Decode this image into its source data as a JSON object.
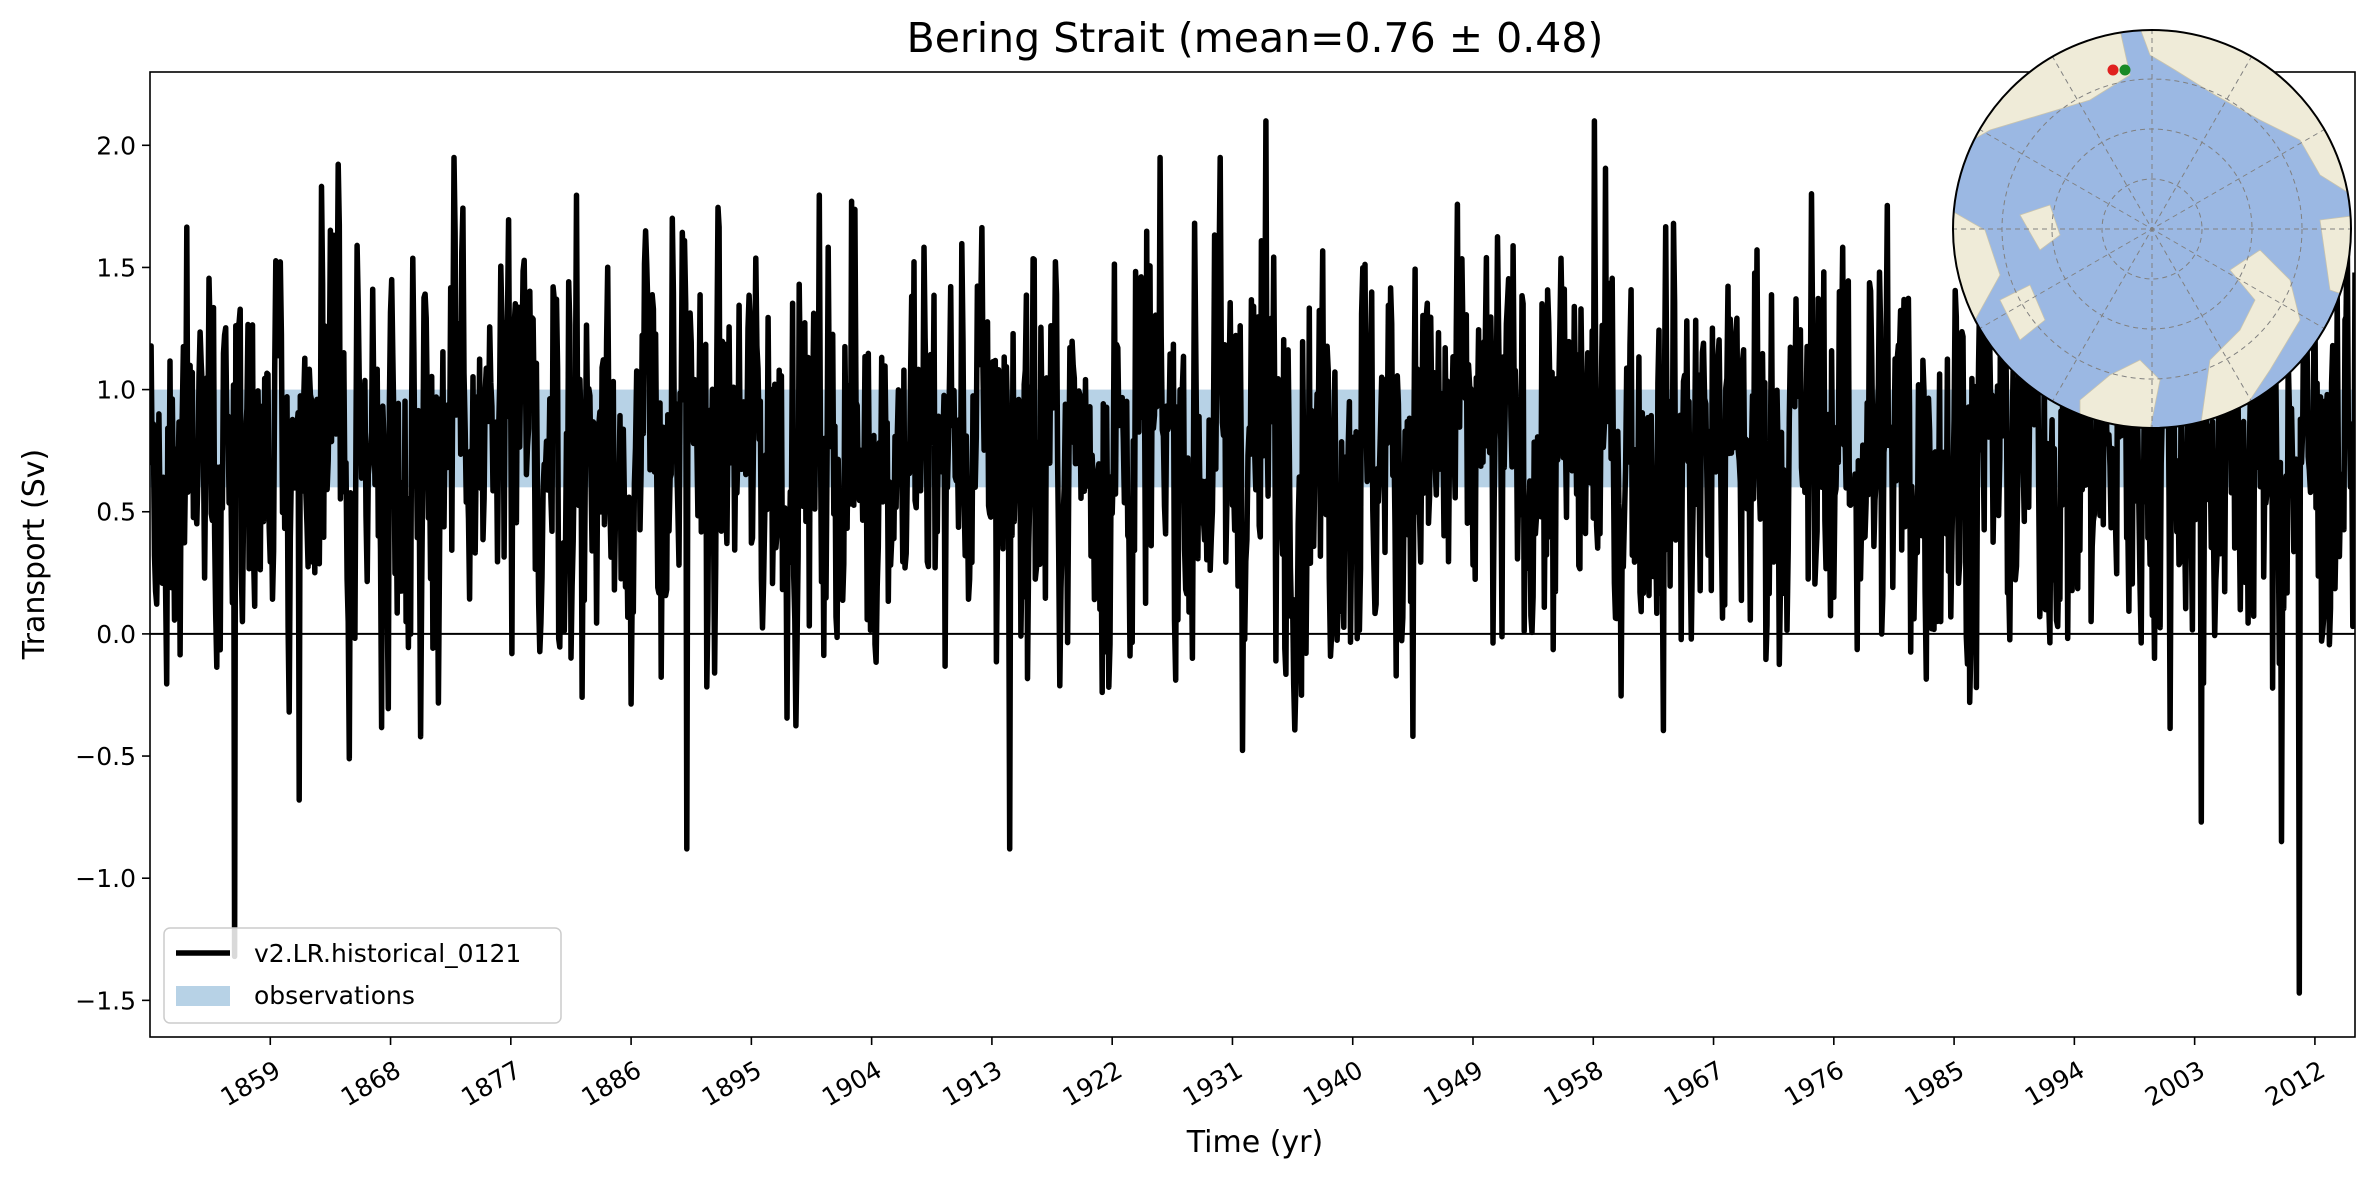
{
  "chart_data": {
    "type": "line",
    "title": "Bering Strait (mean=0.76 ± 0.48)",
    "xlabel": "Time (yr)",
    "ylabel": "Transport (Sv)",
    "xlim": [
      1850,
      2015
    ],
    "ylim": [
      -1.65,
      2.3
    ],
    "x_ticks": [
      1859,
      1868,
      1877,
      1886,
      1895,
      1904,
      1913,
      1922,
      1931,
      1940,
      1949,
      1958,
      1967,
      1976,
      1985,
      1994,
      2003,
      2012
    ],
    "y_ticks": [
      -1.5,
      -1.0,
      -0.5,
      0.0,
      0.5,
      1.0,
      1.5,
      2.0
    ],
    "y_tick_labels": [
      "−1.5",
      "−1.0",
      "−0.5",
      "0.0",
      "0.5",
      "1.0",
      "1.5",
      "2.0"
    ],
    "zero_line": 0.0,
    "observations_band": [
      0.6,
      1.0
    ],
    "series": [
      {
        "name": "v2.LR.historical_0121",
        "color": "#000000",
        "frequency": "monthly",
        "mean": 0.76,
        "std": 0.48,
        "x_start": 1850,
        "x_end": 2015,
        "notable_points": [
          {
            "x": 1856.3,
            "y": -1.32
          },
          {
            "x": 1861.2,
            "y": -0.68
          },
          {
            "x": 1890.2,
            "y": -0.88
          },
          {
            "x": 1914.3,
            "y": -0.88
          },
          {
            "x": 1933.5,
            "y": 2.1
          },
          {
            "x": 1958.1,
            "y": 2.1
          },
          {
            "x": 2010.8,
            "y": -1.47
          },
          {
            "x": 2003.5,
            "y": -0.77
          },
          {
            "x": 2009.5,
            "y": -0.85
          }
        ]
      }
    ],
    "legend": {
      "position": "lower-left",
      "entries": [
        {
          "label": "v2.LR.historical_0121",
          "kind": "line",
          "color": "#000000"
        },
        {
          "label": "observations",
          "kind": "patch",
          "color": "#b7d2e6"
        }
      ]
    },
    "inset_map": {
      "projection": "north-polar-stereographic",
      "ocean_color": "#9bb8e3",
      "land_color": "#efebd8",
      "markers": [
        {
          "label": "section start",
          "color": "#e0211f"
        },
        {
          "label": "section end",
          "color": "#1a8a25"
        }
      ]
    }
  }
}
